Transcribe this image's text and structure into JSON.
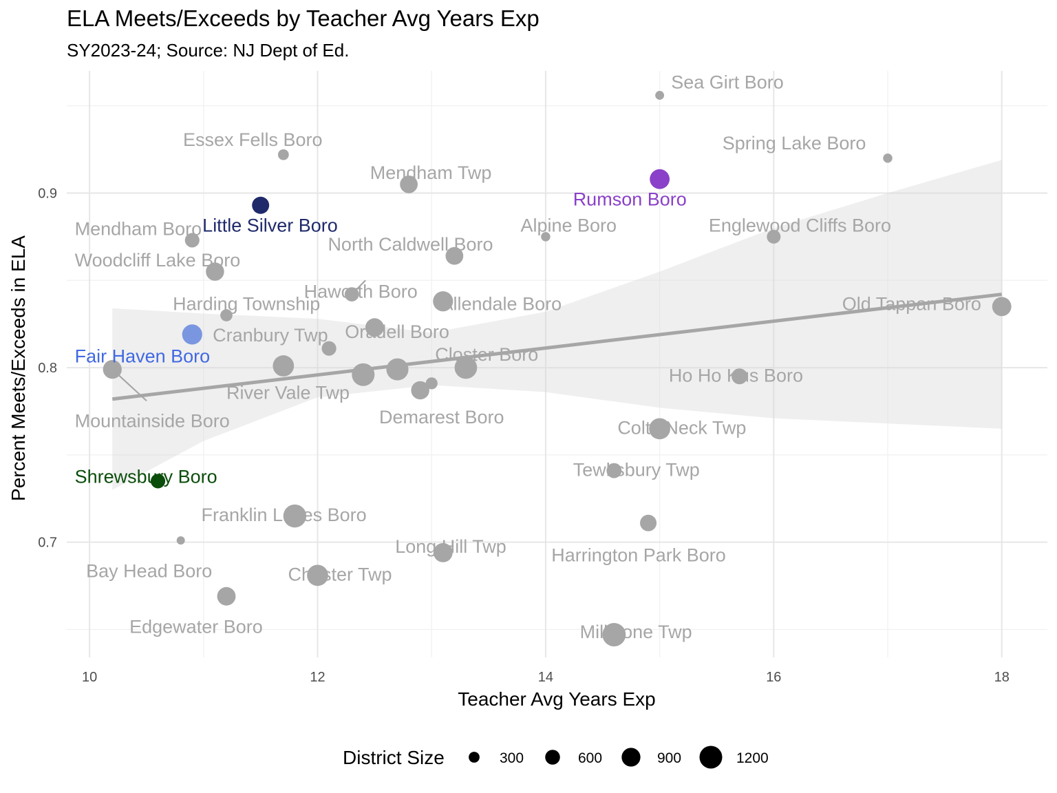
{
  "chart_data": {
    "type": "scatter",
    "title": "ELA Meets/Exceeds by Teacher Avg Years Exp",
    "subtitle": "SY2023-24; Source: NJ Dept of Ed.",
    "xlabel": "Teacher Avg Years Exp",
    "ylabel": "Percent Meets/Exceeds in ELA",
    "xlim": [
      9.8,
      18.4
    ],
    "ylim": [
      0.634,
      0.97
    ],
    "x_ticks": [
      10,
      12,
      14,
      16,
      18
    ],
    "y_ticks": [
      0.7,
      0.8,
      0.9
    ],
    "grid": true,
    "legend": {
      "title": "District Size",
      "position": "bottom",
      "entries": [
        {
          "label": "300",
          "size": 300
        },
        {
          "label": "600",
          "size": 600
        },
        {
          "label": "900",
          "size": 900
        },
        {
          "label": "1200",
          "size": 1200
        }
      ]
    },
    "colors": {
      "default": "#a6a6a6",
      "Little Silver Boro": "#1f2a6b",
      "Rumson Boro": "#8a40c9",
      "Fair Haven Boro": "#7a96e0",
      "Shrewsbury Boro": "#0b4d0b",
      "fair_haven_label": "#4169e1",
      "rumson_label": "#8a40c9"
    },
    "trend_line": {
      "x": [
        10.2,
        18.0
      ],
      "y": [
        0.782,
        0.842
      ]
    },
    "confidence_band": {
      "x": [
        10.2,
        11.0,
        12.0,
        13.0,
        14.0,
        15.0,
        16.0,
        17.0,
        18.0
      ],
      "lower": [
        0.73,
        0.758,
        0.783,
        0.79,
        0.786,
        0.777,
        0.771,
        0.768,
        0.765
      ],
      "upper": [
        0.834,
        0.831,
        0.828,
        0.82,
        0.832,
        0.855,
        0.88,
        0.9,
        0.919
      ]
    },
    "points": [
      {
        "name": "Sea Girt Boro",
        "x": 15.0,
        "y": 0.956,
        "size": 150
      },
      {
        "name": "Essex Fells Boro",
        "x": 11.7,
        "y": 0.922,
        "size": 300
      },
      {
        "name": "Spring Lake Boro",
        "x": 17.0,
        "y": 0.92,
        "size": 180
      },
      {
        "name": "Mendham Twp",
        "x": 12.8,
        "y": 0.905,
        "size": 820
      },
      {
        "name": "Rumson Boro",
        "x": 15.0,
        "y": 0.908,
        "size": 980
      },
      {
        "name": "Little Silver Boro",
        "x": 11.5,
        "y": 0.893,
        "size": 780
      },
      {
        "name": "Alpine Boro",
        "x": 14.0,
        "y": 0.875,
        "size": 180
      },
      {
        "name": "Englewood Cliffs Boro",
        "x": 16.0,
        "y": 0.875,
        "size": 520
      },
      {
        "name": "Mendham Boro",
        "x": 10.9,
        "y": 0.873,
        "size": 580
      },
      {
        "name": "North Caldwell Boro",
        "x": 13.2,
        "y": 0.864,
        "size": 820
      },
      {
        "name": "Woodcliff Lake Boro",
        "x": 11.1,
        "y": 0.855,
        "size": 860
      },
      {
        "name": "Haworth Boro",
        "x": 12.3,
        "y": 0.842,
        "size": 560
      },
      {
        "name": "Allendale Boro",
        "x": 13.1,
        "y": 0.838,
        "size": 1000
      },
      {
        "name": "Old Tappan Boro",
        "x": 18.0,
        "y": 0.835,
        "size": 930
      },
      {
        "name": "Harding Township",
        "x": 11.2,
        "y": 0.83,
        "size": 400
      },
      {
        "name": "Oradell Boro",
        "x": 12.5,
        "y": 0.823,
        "size": 880
      },
      {
        "name": "Fair Haven Boro",
        "x": 10.9,
        "y": 0.819,
        "size": 1000
      },
      {
        "name": "Cranbury Twp",
        "x": 12.1,
        "y": 0.811,
        "size": 580
      },
      {
        "name": "River Vale Twp",
        "x": 11.7,
        "y": 0.801,
        "size": 1080
      },
      {
        "name": "Mountainside Boro",
        "x": 10.2,
        "y": 0.799,
        "size": 900
      },
      {
        "name": "Closter Boro",
        "x": 13.3,
        "y": 0.8,
        "size": 1180
      },
      {
        "name": "Demarest Boro",
        "x": 12.7,
        "y": 0.799,
        "size": 1150
      },
      {
        "name": "",
        "x": 12.4,
        "y": 0.796,
        "size": 1200
      },
      {
        "name": "",
        "x": 13.0,
        "y": 0.791,
        "size": 380
      },
      {
        "name": "",
        "x": 12.9,
        "y": 0.787,
        "size": 860
      },
      {
        "name": "Ho Ho Kus Boro",
        "x": 15.7,
        "y": 0.795,
        "size": 680
      },
      {
        "name": "Colts Neck Twp",
        "x": 15.0,
        "y": 0.765,
        "size": 1080
      },
      {
        "name": "Tewksbury Twp",
        "x": 14.6,
        "y": 0.741,
        "size": 620
      },
      {
        "name": "Shrewsbury Boro",
        "x": 10.6,
        "y": 0.735,
        "size": 580
      },
      {
        "name": "Franklin Lakes Boro",
        "x": 11.8,
        "y": 0.715,
        "size": 1220
      },
      {
        "name": "Harrington Park Boro",
        "x": 14.9,
        "y": 0.711,
        "size": 730
      },
      {
        "name": "Bay Head Boro",
        "x": 10.8,
        "y": 0.701,
        "size": 100
      },
      {
        "name": "Long Hill Twp",
        "x": 13.1,
        "y": 0.694,
        "size": 930
      },
      {
        "name": "Chester Twp",
        "x": 12.0,
        "y": 0.681,
        "size": 1080
      },
      {
        "name": "Edgewater Boro",
        "x": 11.2,
        "y": 0.669,
        "size": 880
      },
      {
        "name": "Millstone Twp",
        "x": 14.6,
        "y": 0.647,
        "size": 1250
      }
    ],
    "labels": [
      {
        "text": "Sea Girt Boro",
        "x": 15.1,
        "y": 0.96,
        "color": "#a6a6a6"
      },
      {
        "text": "Essex Fells Boro",
        "x": 10.82,
        "y": 0.927,
        "color": "#a6a6a6"
      },
      {
        "text": "Spring Lake Boro",
        "x": 15.55,
        "y": 0.925,
        "color": "#a6a6a6"
      },
      {
        "text": "Mendham Twp",
        "x": 12.46,
        "y": 0.908,
        "color": "#a6a6a6"
      },
      {
        "text": "Rumson Boro",
        "x": 14.24,
        "y": 0.893,
        "color": "#8a40c9"
      },
      {
        "text": "Little Silver Boro",
        "x": 10.99,
        "y": 0.878,
        "color": "#1f2a6b"
      },
      {
        "text": "Alpine Boro",
        "x": 13.78,
        "y": 0.878,
        "color": "#a6a6a6"
      },
      {
        "text": "Englewood Cliffs Boro",
        "x": 15.43,
        "y": 0.878,
        "color": "#a6a6a6"
      },
      {
        "text": "Mendham Boro",
        "x": 9.87,
        "y": 0.876,
        "color": "#a6a6a6"
      },
      {
        "text": "North Caldwell Boro",
        "x": 12.09,
        "y": 0.867,
        "color": "#a6a6a6"
      },
      {
        "text": "Woodcliff Lake Boro",
        "x": 9.87,
        "y": 0.858,
        "color": "#a6a6a6"
      },
      {
        "text": "Haworth Boro",
        "x": 11.88,
        "y": 0.84,
        "color": "#a6a6a6"
      },
      {
        "text": "Allendale Boro",
        "x": 13.08,
        "y": 0.833,
        "color": "#a6a6a6"
      },
      {
        "text": "Old Tappan Boro",
        "x": 16.6,
        "y": 0.833,
        "color": "#a6a6a6"
      },
      {
        "text": "Harding Township",
        "x": 10.73,
        "y": 0.833,
        "color": "#a6a6a6"
      },
      {
        "text": "Oradell Boro",
        "x": 12.24,
        "y": 0.817,
        "color": "#a6a6a6"
      },
      {
        "text": "Cranbury Twp",
        "x": 11.08,
        "y": 0.815,
        "color": "#a6a6a6"
      },
      {
        "text": "Fair Haven Boro",
        "x": 9.87,
        "y": 0.803,
        "color": "#4169e1"
      },
      {
        "text": "Closter Boro",
        "x": 13.03,
        "y": 0.804,
        "color": "#a6a6a6"
      },
      {
        "text": "River Vale Twp",
        "x": 11.2,
        "y": 0.782,
        "color": "#a6a6a6"
      },
      {
        "text": "Ho Ho Kus Boro",
        "x": 15.08,
        "y": 0.792,
        "color": "#a6a6a6"
      },
      {
        "text": "Demarest Boro",
        "x": 12.54,
        "y": 0.768,
        "color": "#a6a6a6"
      },
      {
        "text": "Mountainside Boro",
        "x": 9.87,
        "y": 0.766,
        "color": "#a6a6a6"
      },
      {
        "text": "Colts Neck Twp",
        "x": 14.63,
        "y": 0.762,
        "color": "#a6a6a6"
      },
      {
        "text": "Tewksbury Twp",
        "x": 14.24,
        "y": 0.738,
        "color": "#a6a6a6"
      },
      {
        "text": "Shrewsbury Boro",
        "x": 9.87,
        "y": 0.734,
        "color": "#0b4d0b"
      },
      {
        "text": "Franklin Lakes Boro",
        "x": 10.98,
        "y": 0.712,
        "color": "#a6a6a6"
      },
      {
        "text": "Long Hill Twp",
        "x": 12.68,
        "y": 0.694,
        "color": "#a6a6a6"
      },
      {
        "text": "Harrington Park Boro",
        "x": 14.05,
        "y": 0.689,
        "color": "#a6a6a6"
      },
      {
        "text": "Bay Head Boro",
        "x": 9.97,
        "y": 0.68,
        "color": "#a6a6a6"
      },
      {
        "text": "Chester Twp",
        "x": 11.74,
        "y": 0.678,
        "color": "#a6a6a6"
      },
      {
        "text": "Edgewater Boro",
        "x": 10.35,
        "y": 0.648,
        "color": "#a6a6a6"
      },
      {
        "text": "Millstone Twp",
        "x": 14.3,
        "y": 0.645,
        "color": "#a6a6a6"
      }
    ],
    "leaders": [
      {
        "from": [
          10.2,
          0.799
        ],
        "to": [
          10.5,
          0.781
        ]
      },
      {
        "from": [
          12.3,
          0.842
        ],
        "to": [
          12.42,
          0.85
        ]
      }
    ]
  }
}
